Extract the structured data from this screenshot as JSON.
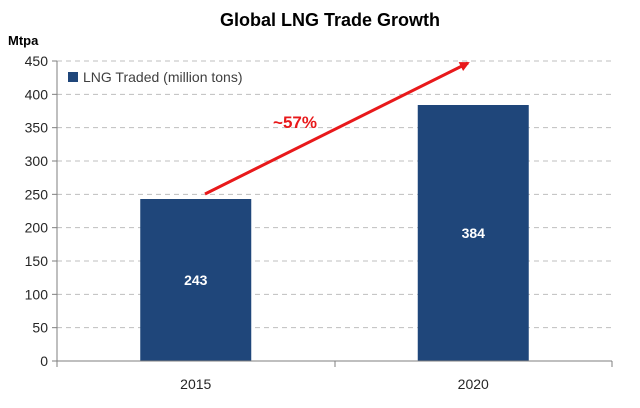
{
  "chart_data": {
    "type": "bar",
    "title": "Global LNG Trade Growth",
    "ylabel": "Mtpa",
    "xlabel": "",
    "categories": [
      "2015",
      "2020"
    ],
    "series": [
      {
        "name": "LNG Traded (million tons)",
        "values": [
          243,
          384
        ]
      }
    ],
    "data_labels": [
      "243",
      "384"
    ],
    "ylim": [
      0,
      450
    ],
    "yticks": [
      0,
      50,
      100,
      150,
      200,
      250,
      300,
      350,
      400,
      450
    ],
    "grid": true,
    "legend_position": "top-left",
    "annotation": {
      "text": "~57%"
    },
    "colors": {
      "bar": "#1f467a",
      "arrow": "#e8191b",
      "grid": "#bfbfbf",
      "axis": "#7f7f7f"
    }
  }
}
